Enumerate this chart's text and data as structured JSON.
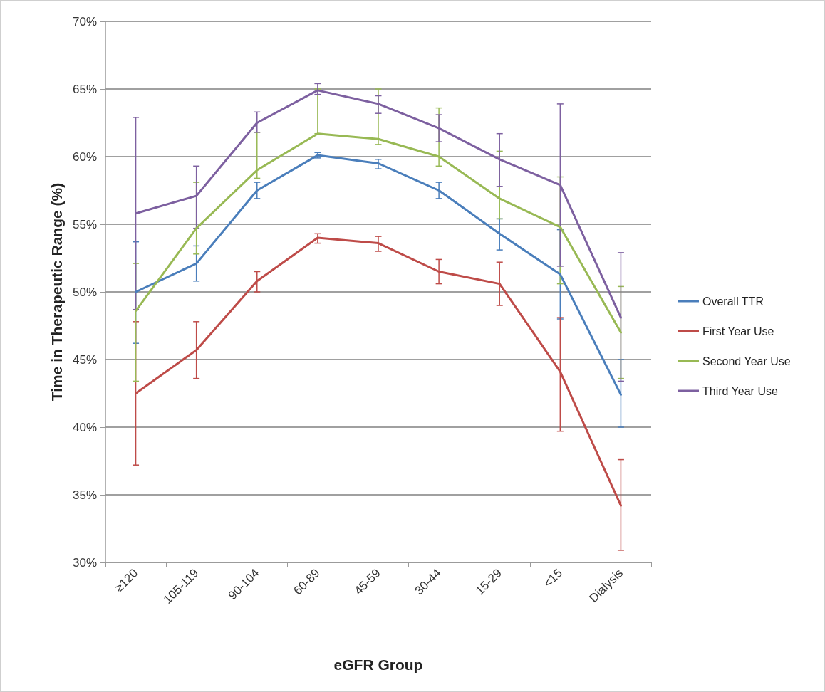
{
  "chart_data": {
    "type": "line",
    "xlabel": "eGFR Group",
    "ylabel": "Time in Therapeutic Range (%)",
    "categories": [
      "≥120",
      "105-119",
      "90-104",
      "60-89",
      "45-59",
      "30-44",
      "15-29",
      "<15",
      "Dialysis"
    ],
    "series": [
      {
        "name": "Overall TTR",
        "color": "#4a7ebb",
        "values": [
          50.0,
          52.1,
          57.5,
          60.1,
          59.5,
          57.5,
          54.3,
          51.3,
          42.4
        ],
        "errors": [
          [
            46.2,
            53.7
          ],
          [
            50.8,
            53.4
          ],
          [
            56.9,
            58.1
          ],
          [
            59.9,
            60.3
          ],
          [
            59.1,
            59.8
          ],
          [
            56.9,
            58.1
          ],
          [
            53.1,
            55.4
          ],
          [
            48.0,
            54.6
          ],
          [
            40.0,
            45.0
          ]
        ]
      },
      {
        "name": "First Year Use",
        "color": "#be4b48",
        "values": [
          42.5,
          45.7,
          50.8,
          54.0,
          53.6,
          51.5,
          50.6,
          44.1,
          34.2
        ],
        "errors": [
          [
            37.2,
            47.8
          ],
          [
            43.6,
            47.8
          ],
          [
            50.0,
            51.5
          ],
          [
            53.6,
            54.3
          ],
          [
            53.0,
            54.1
          ],
          [
            50.6,
            52.4
          ],
          [
            49.0,
            52.2
          ],
          [
            39.7,
            48.1
          ],
          [
            30.9,
            37.6
          ]
        ]
      },
      {
        "name": "Second Year Use",
        "color": "#98b954",
        "values": [
          48.6,
          54.7,
          59.0,
          61.7,
          61.3,
          60.0,
          56.9,
          54.8,
          47.0
        ],
        "errors": [
          [
            43.4,
            52.1
          ],
          [
            52.8,
            58.1
          ],
          [
            58.4,
            61.8
          ],
          [
            61.7,
            65.0
          ],
          [
            60.9,
            65.0
          ],
          [
            59.3,
            63.6
          ],
          [
            55.4,
            60.4
          ],
          [
            50.6,
            58.5
          ],
          [
            43.6,
            50.4
          ]
        ]
      },
      {
        "name": "Third Year Use",
        "color": "#7d60a0",
        "values": [
          55.8,
          57.1,
          62.5,
          64.9,
          63.9,
          62.1,
          59.8,
          57.9,
          48.1
        ],
        "errors": [
          [
            48.7,
            62.9
          ],
          [
            54.7,
            59.3
          ],
          [
            61.8,
            63.3
          ],
          [
            64.6,
            65.4
          ],
          [
            63.2,
            64.5
          ],
          [
            61.1,
            63.1
          ],
          [
            57.8,
            61.7
          ],
          [
            51.9,
            63.9
          ],
          [
            43.4,
            52.9
          ]
        ]
      }
    ],
    "ylim": [
      30,
      70
    ],
    "yticks": [
      {
        "value": 30,
        "label": "30%"
      },
      {
        "value": 35,
        "label": "35%"
      },
      {
        "value": 40,
        "label": "40%"
      },
      {
        "value": 45,
        "label": "45%"
      },
      {
        "value": 50,
        "label": "50%"
      },
      {
        "value": 55,
        "label": "55%"
      },
      {
        "value": 60,
        "label": "60%"
      },
      {
        "value": 65,
        "label": "65%"
      },
      {
        "value": 70,
        "label": "70%"
      }
    ],
    "grid": "y",
    "legend": "right",
    "marker": "none"
  }
}
